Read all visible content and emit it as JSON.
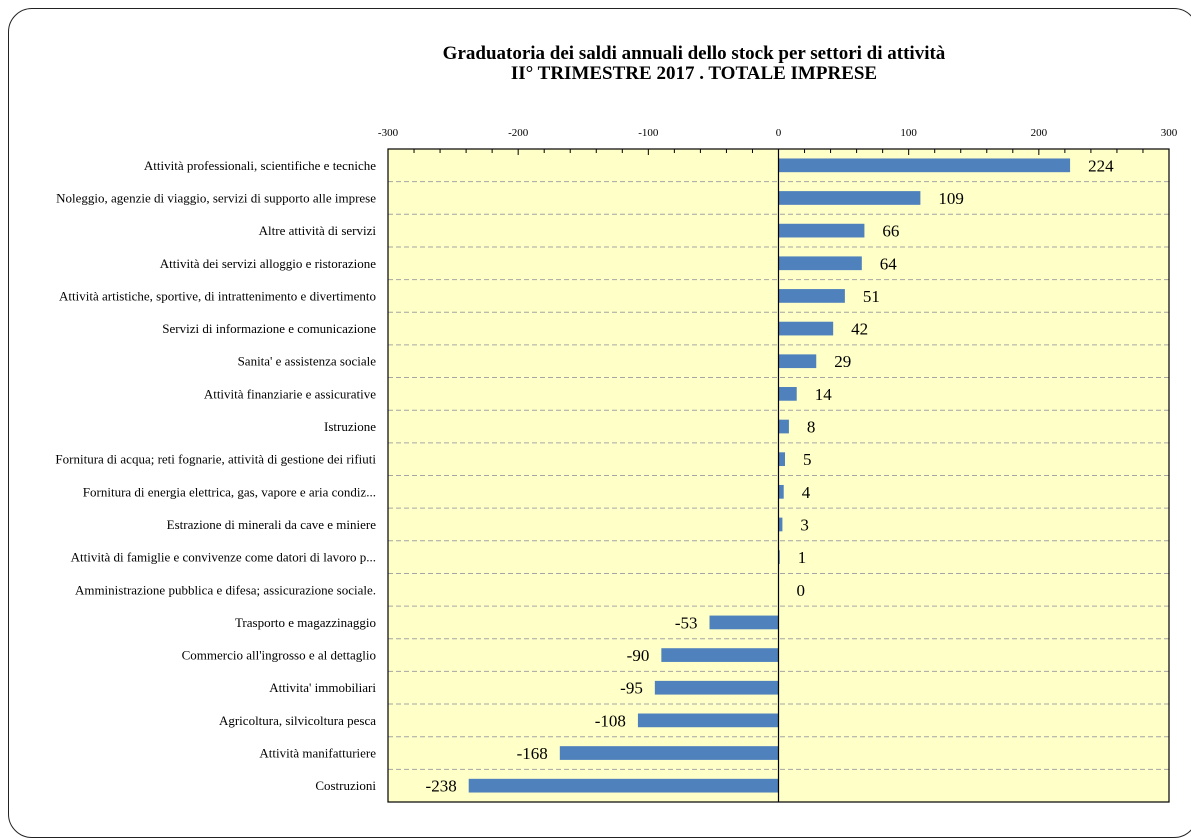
{
  "chart_data": {
    "type": "bar",
    "orientation": "horizontal",
    "title": "Graduatoria dei saldi annuali dello stock per settori di attività",
    "subtitle": "II° TRIMESTRE 2017 . TOTALE IMPRESE",
    "xlabel": "",
    "ylabel": "",
    "xlim": [
      -300,
      300
    ],
    "x_ticks": [
      -300,
      -200,
      -100,
      0,
      100,
      200,
      300
    ],
    "axis_position": "top",
    "grid": "horizontal dashed",
    "categories": [
      "Attività professionali, scientifiche e tecniche",
      "Noleggio, agenzie di viaggio, servizi di supporto alle imprese",
      "Altre attività di servizi",
      "Attività dei servizi alloggio e ristorazione",
      "Attività artistiche, sportive, di intrattenimento e divertimento",
      "Servizi di informazione e comunicazione",
      "Sanita' e assistenza sociale",
      "Attività finanziarie e assicurative",
      "Istruzione",
      "Fornitura di acqua; reti fognarie, attività di gestione dei rifiuti",
      "Fornitura di energia elettrica, gas, vapore e aria condiz...",
      "Estrazione di minerali da cave e miniere",
      "Attività di famiglie e convivenze come datori di lavoro p...",
      "Amministrazione pubblica e difesa; assicurazione sociale.",
      "Trasporto e magazzinaggio",
      "Commercio all'ingrosso e al dettaglio",
      "Attivita' immobiliari",
      "Agricoltura, silvicoltura pesca",
      "Attività manifatturiere",
      "Costruzioni"
    ],
    "values": [
      224,
      109,
      66,
      64,
      51,
      42,
      29,
      14,
      8,
      5,
      4,
      3,
      1,
      0,
      -53,
      -90,
      -95,
      -108,
      -168,
      -238
    ],
    "colors": {
      "bar": "#4f81bd",
      "plot_background": "#ffffc8",
      "grid": "#a6a6a6"
    }
  }
}
